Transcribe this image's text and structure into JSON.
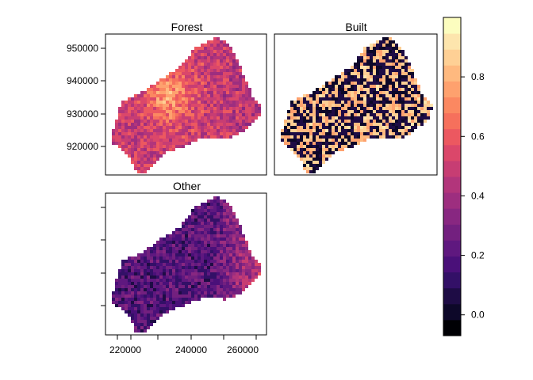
{
  "panels": [
    {
      "title": "Forest",
      "mean": 0.55
    },
    {
      "title": "Built",
      "mean": 0.45
    },
    {
      "title": "Other",
      "mean": 0.28
    }
  ],
  "axes": {
    "y_ticks": [
      {
        "label": "920000"
      },
      {
        "label": "930000"
      },
      {
        "label": "940000"
      },
      {
        "label": "950000"
      }
    ],
    "x_ticks": [
      {
        "label": "220000"
      },
      {
        "label": "240000"
      },
      {
        "label": "260000"
      }
    ]
  },
  "colorbar": {
    "ticks": [
      {
        "value": 0.0,
        "label": "0.0"
      },
      {
        "value": 0.2,
        "label": "0.2"
      },
      {
        "value": 0.4,
        "label": "0.4"
      },
      {
        "value": 0.6,
        "label": "0.6"
      },
      {
        "value": 0.8,
        "label": "0.8"
      }
    ],
    "colors": [
      "#000004",
      "#0d0829",
      "#1e0c45",
      "#331067",
      "#4a1079",
      "#5f187f",
      "#73207f",
      "#882781",
      "#9d2e7f",
      "#b2357b",
      "#c73d73",
      "#db476a",
      "#ec5860",
      "#f6705c",
      "#fb8861",
      "#fea16e",
      "#feb97f",
      "#fed095",
      "#fde5ad",
      "#fcfdbf"
    ]
  }
}
